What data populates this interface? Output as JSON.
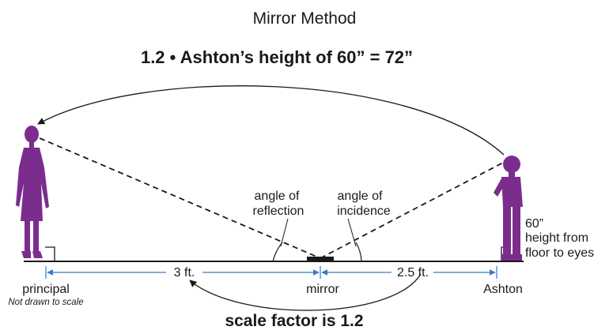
{
  "title": "Mirror Method",
  "equation": "1.2 • Ashton’s height of 60” = 72”",
  "labels": {
    "angle_reflection_1": "angle of",
    "angle_reflection_2": "reflection",
    "angle_incidence_1": "angle of",
    "angle_incidence_2": "incidence",
    "height_1": "60”",
    "height_2": "height from",
    "height_3": "floor to eyes",
    "distance_left": "3 ft.",
    "distance_right": "2.5 ft.",
    "principal": "principal",
    "not_to_scale": "Not drawn to scale",
    "mirror": "mirror",
    "ashton": "Ashton",
    "scale_factor": "scale factor is 1.2"
  },
  "colors": {
    "figure": "#7b2d8e",
    "measure": "#3a7cc4",
    "line": "#1a1a1a"
  }
}
